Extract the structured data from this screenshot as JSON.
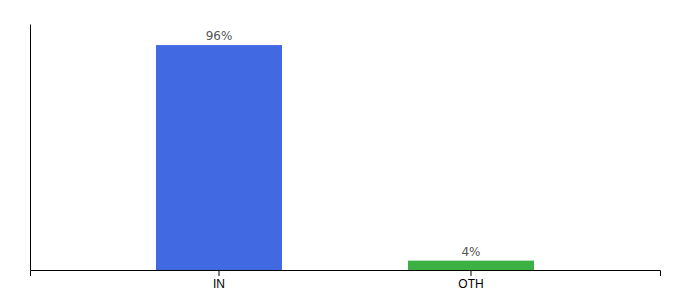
{
  "chart_data": {
    "type": "bar",
    "categories": [
      "IN",
      "OTH"
    ],
    "values": [
      96,
      4
    ],
    "colors": [
      "#4169e1",
      "#3cb043"
    ],
    "data_labels": true,
    "value_labels": [
      "96%",
      "4%"
    ],
    "ylim": [
      0,
      105
    ],
    "tick_labels": "x",
    "grid": false
  }
}
